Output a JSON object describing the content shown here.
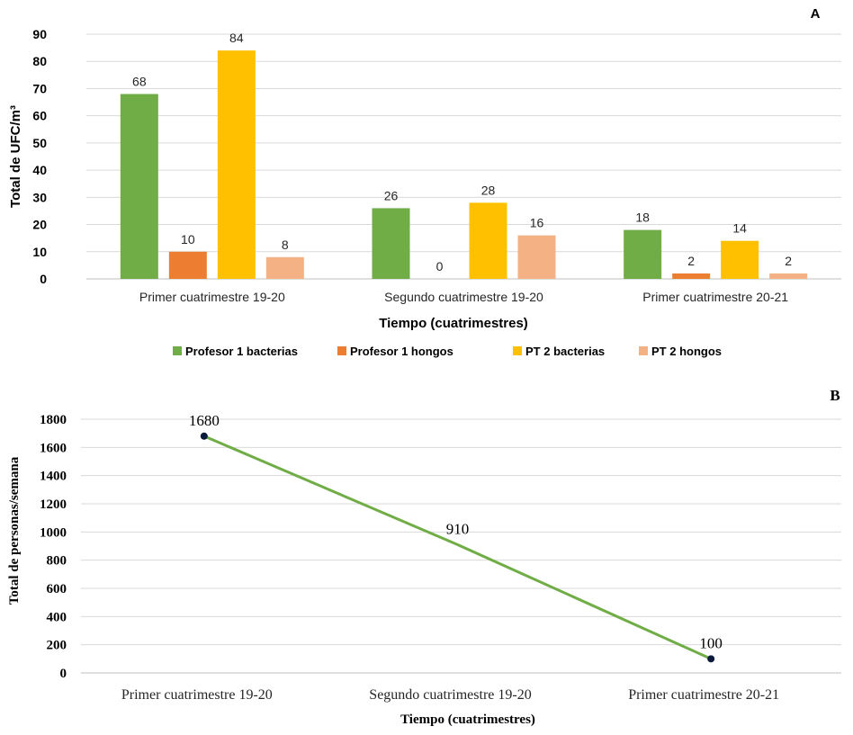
{
  "chart_data": [
    {
      "type": "bar",
      "panel_label": "A",
      "categories": [
        "Primer cuatrimestre 19-20",
        "Segundo cuatrimestre 19-20",
        "Primer cuatrimestre 20-21"
      ],
      "series": [
        {
          "name": "Profesor 1 bacterias",
          "values": [
            68,
            26,
            18
          ],
          "color": "#70ad47"
        },
        {
          "name": "Profesor 1 hongos",
          "values": [
            10,
            0,
            2
          ],
          "color": "#ed7d31"
        },
        {
          "name": "PT 2 bacterias",
          "values": [
            84,
            28,
            14
          ],
          "color": "#ffc000"
        },
        {
          "name": "PT 2 hongos",
          "values": [
            8,
            16,
            2
          ],
          "color": "#f4b183"
        }
      ],
      "xlabel": "Tiempo (cuatrimestres)",
      "ylabel": "Total de UFC/m³",
      "ylim": [
        0,
        90
      ],
      "yticks": [
        0,
        10,
        20,
        30,
        40,
        50,
        60,
        70,
        80,
        90
      ],
      "grid": true,
      "legend_position": "bottom"
    },
    {
      "type": "line",
      "panel_label": "B",
      "categories": [
        "Primer cuatrimestre 19-20",
        "Segundo cuatrimestre 19-20",
        "Primer cuatrimestre 20-21"
      ],
      "series": [
        {
          "values": [
            1680,
            910,
            100
          ],
          "color": "#70ad47",
          "marker_color": "#0b1a3a"
        }
      ],
      "xlabel": "Tiempo (cuatrimestres)",
      "ylabel": "Total de personas/semana",
      "ylim": [
        0,
        1800
      ],
      "yticks": [
        0,
        200,
        400,
        600,
        800,
        1000,
        1200,
        1400,
        1600,
        1800
      ],
      "grid": true
    }
  ]
}
